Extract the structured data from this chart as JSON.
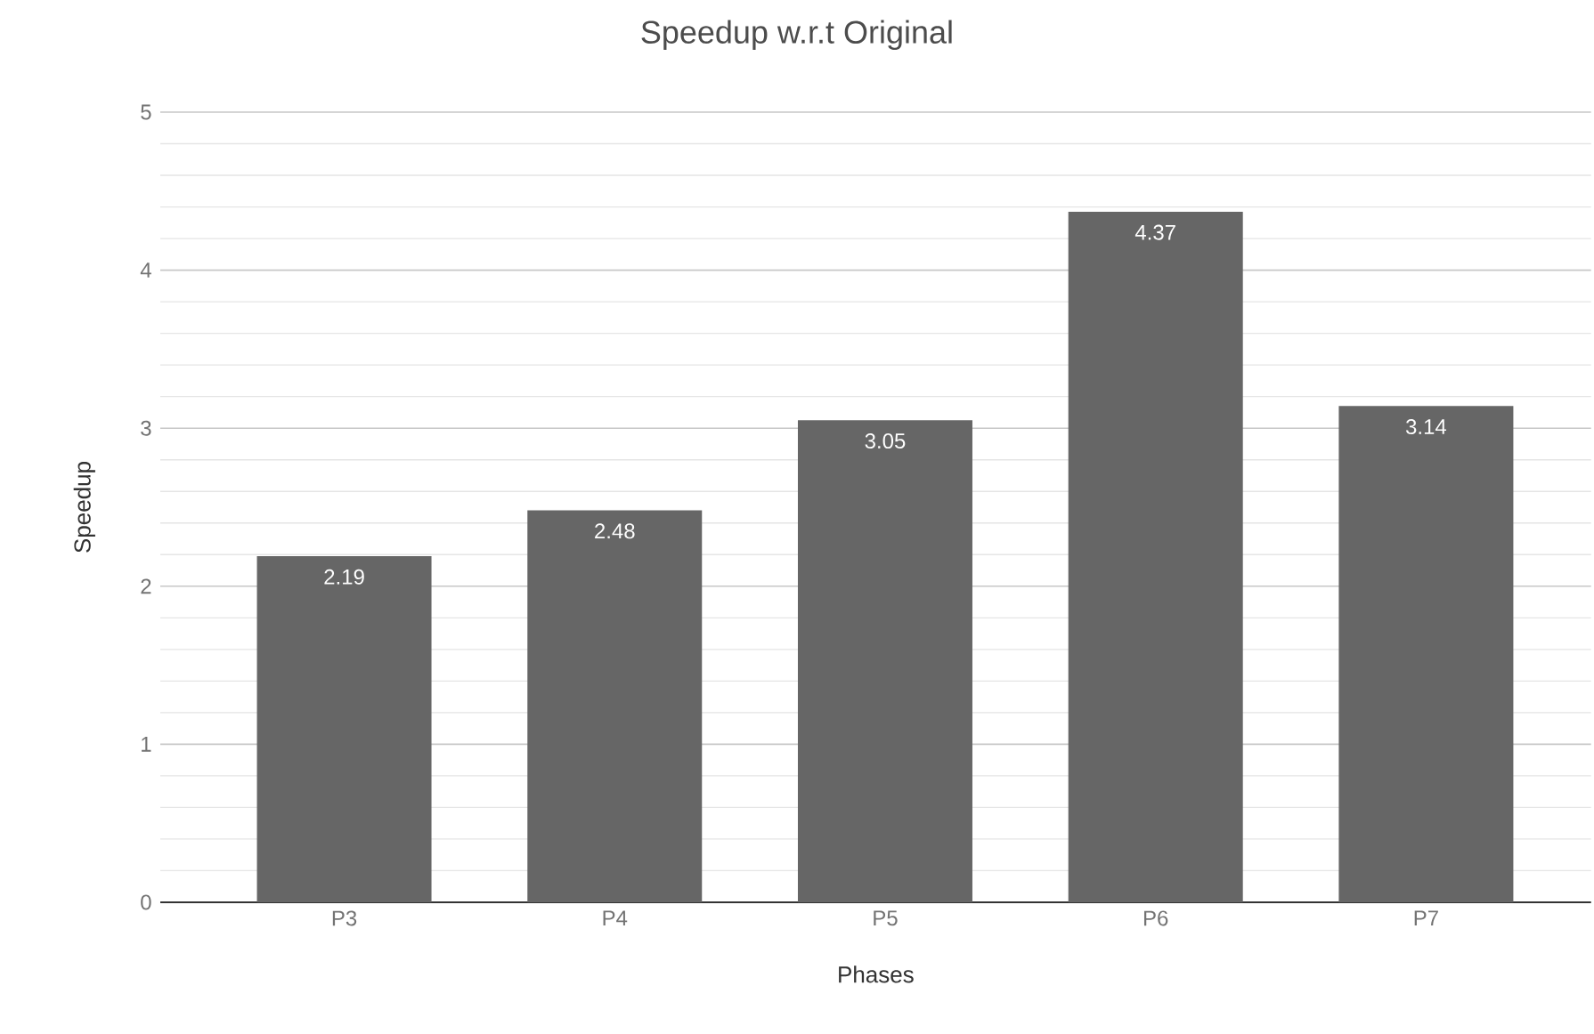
{
  "chart_data": {
    "type": "bar",
    "title": "Speedup w.r.t Original",
    "xlabel": "Phases",
    "ylabel": "Speedup",
    "categories": [
      "P3",
      "P4",
      "P5",
      "P6",
      "P7"
    ],
    "values": [
      2.19,
      2.48,
      3.05,
      4.37,
      3.14
    ],
    "color": "#666666",
    "ylim": [
      0,
      5
    ],
    "yticks": [
      0,
      1,
      2,
      3,
      4,
      5
    ],
    "grid": "y",
    "data_labels": true
  }
}
